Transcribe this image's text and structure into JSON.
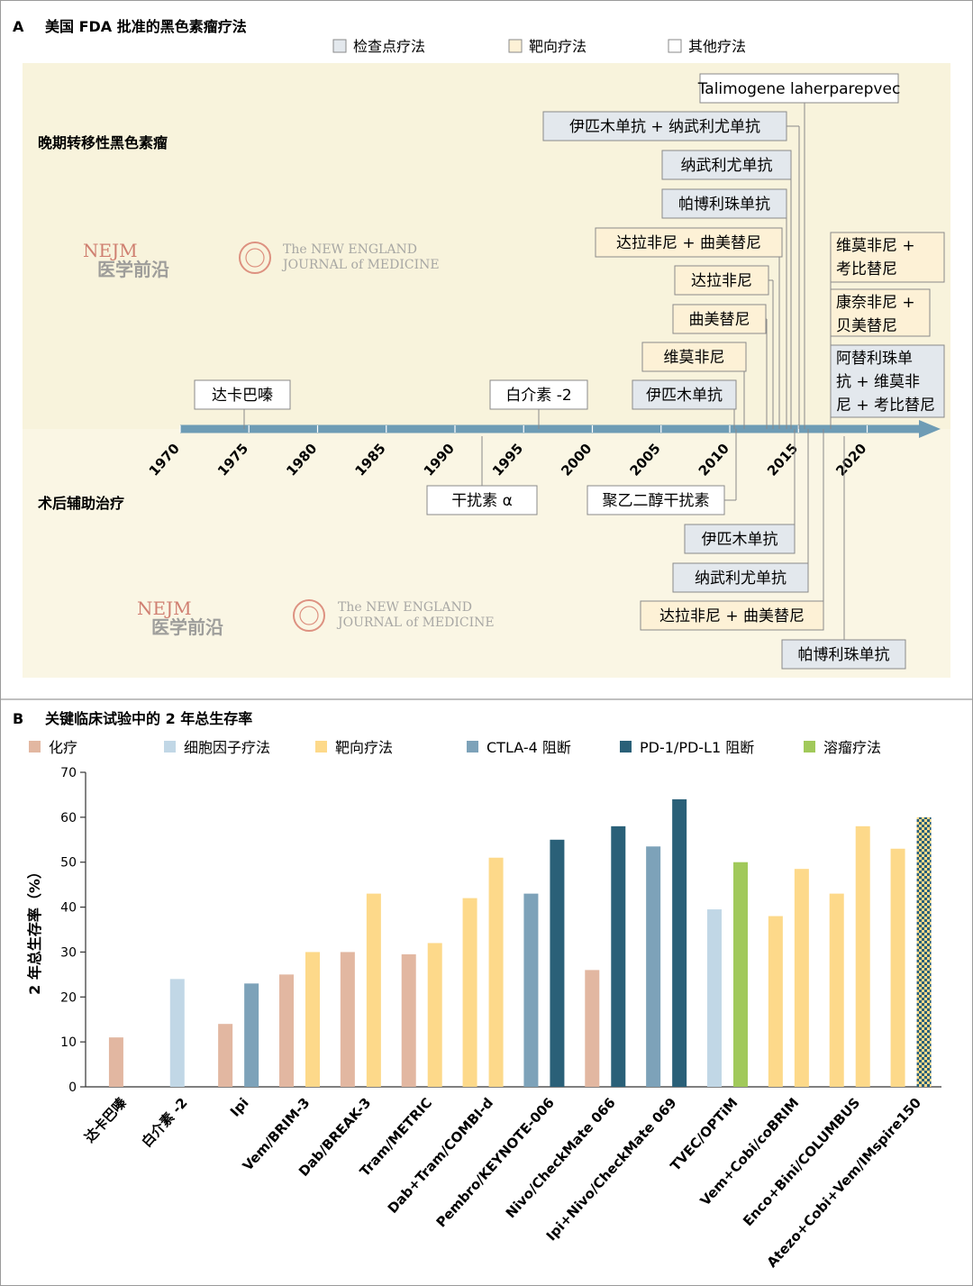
{
  "panel_a": {
    "letter": "A",
    "title": "美国 FDA 批准的黑色素瘤疗法",
    "legend": [
      {
        "label": "检查点疗法",
        "color": "#e3e8ed"
      },
      {
        "label": "靶向疗法",
        "color": "#fdf1d6"
      },
      {
        "label": "其他疗法",
        "color": "#ffffff"
      }
    ],
    "section_top": "晚期转移性黑色素瘤",
    "section_bottom": "术后辅助治疗",
    "watermark": {
      "nejm": "NEJM",
      "cn": "医学前沿",
      "line1": "The NEW ENGLAND",
      "line2": "JOURNAL of MEDICINE"
    },
    "year_ticks": [
      "1970",
      "1975",
      "1980",
      "1985",
      "1990",
      "1995",
      "2000",
      "2005",
      "2010",
      "2015",
      "2020"
    ],
    "approvals_top": [
      {
        "label": "Talimogene laherparepvec",
        "type": "other",
        "year": 2015.8
      },
      {
        "label": "伊匹木单抗 + 纳武利尤单抗",
        "type": "checkpoint",
        "year": 2015.7
      },
      {
        "label": "纳武利尤单抗",
        "type": "checkpoint",
        "year": 2014.9
      },
      {
        "label": "帕博利珠单抗",
        "type": "checkpoint",
        "year": 2014.7
      },
      {
        "label": "达拉非尼 + 曲美替尼",
        "type": "targeted",
        "year": 2014.0
      },
      {
        "label": "达拉非尼",
        "type": "targeted",
        "year": 2013.4
      },
      {
        "label": "曲美替尼",
        "type": "targeted",
        "year": 2013.4
      },
      {
        "label": "维莫非尼",
        "type": "targeted",
        "year": 2011.6
      },
      {
        "label": "伊匹木单抗",
        "type": "checkpoint",
        "year": 2011.2
      },
      {
        "label": "达卡巴嗪",
        "type": "other",
        "year": 1975.0
      },
      {
        "label": "白介素 -2",
        "type": "other",
        "year": 1998.0
      },
      {
        "label": "维莫非尼 +\n考比替尼",
        "type": "targeted",
        "year": 2015.9
      },
      {
        "label": "康奈非尼 +\n贝美替尼",
        "type": "targeted",
        "year": 2018.5
      },
      {
        "label": "阿替利珠单\n抗 + 维莫非\n尼 + 考比替尼",
        "type": "checkpoint",
        "year": 2020.5
      }
    ],
    "approvals_bottom": [
      {
        "label": "干扰素 α",
        "type": "other",
        "year": 1995.8
      },
      {
        "label": "聚乙二醇干扰素",
        "type": "other",
        "year": 2011.0
      },
      {
        "label": "伊匹木单抗",
        "type": "checkpoint",
        "year": 2015.3
      },
      {
        "label": "纳武利尤单抗",
        "type": "checkpoint",
        "year": 2017.6
      },
      {
        "label": "达拉非尼 + 曲美替尼",
        "type": "targeted",
        "year": 2018.3
      },
      {
        "label": "帕博利珠单抗",
        "type": "checkpoint",
        "year": 2019.0
      }
    ]
  },
  "panel_b": {
    "letter": "B",
    "title": "关键临床试验中的 2 年总生存率",
    "colors": {
      "chemo": "#e2b7a1",
      "cytokine": "#c1d7e6",
      "targeted": "#fdd98a",
      "ctla4": "#7da2b9",
      "pd1": "#2a6078",
      "oncolytic": "#a1c95a"
    }
  },
  "chart_data": {
    "type": "bar",
    "ylabel": "2 年总生存率（%）",
    "ylim": [
      0,
      70
    ],
    "yticks": [
      0,
      10,
      20,
      30,
      40,
      50,
      60,
      70
    ],
    "legend": [
      {
        "key": "chemo",
        "label": "化疗"
      },
      {
        "key": "cytokine",
        "label": "细胞因子疗法"
      },
      {
        "key": "targeted",
        "label": "靶向疗法"
      },
      {
        "key": "ctla4",
        "label": "CTLA-4 阻断"
      },
      {
        "key": "pd1",
        "label": "PD-1/PD-L1 阻断"
      },
      {
        "key": "oncolytic",
        "label": "溶瘤疗法"
      }
    ],
    "groups": [
      {
        "category": "达卡巴嗪",
        "bars": [
          {
            "series": "chemo",
            "value": 11
          }
        ]
      },
      {
        "category": "白介素 -2",
        "bars": [
          {
            "series": "cytokine",
            "value": 24
          }
        ]
      },
      {
        "category": "Ipi",
        "bars": [
          {
            "series": "chemo",
            "value": 14
          },
          {
            "series": "ctla4",
            "value": 23
          }
        ]
      },
      {
        "category": "Vem/BRIM-3",
        "bars": [
          {
            "series": "chemo",
            "value": 25
          },
          {
            "series": "targeted",
            "value": 30
          }
        ]
      },
      {
        "category": "Dab/BREAK-3",
        "bars": [
          {
            "series": "chemo",
            "value": 30
          },
          {
            "series": "targeted",
            "value": 43
          }
        ]
      },
      {
        "category": "Tram/METRIC",
        "bars": [
          {
            "series": "chemo",
            "value": 29.5
          },
          {
            "series": "targeted",
            "value": 32
          }
        ]
      },
      {
        "category": "Dab+Tram/COMBI-d",
        "bars": [
          {
            "series": "targeted",
            "value": 42
          },
          {
            "series": "targeted",
            "value": 51
          }
        ]
      },
      {
        "category": "Pembro/KEYNOTE-006",
        "bars": [
          {
            "series": "ctla4",
            "value": 43
          },
          {
            "series": "pd1",
            "value": 55
          }
        ]
      },
      {
        "category": "Nivo/CheckMate 066",
        "bars": [
          {
            "series": "chemo",
            "value": 26
          },
          {
            "series": "pd1",
            "value": 58
          }
        ]
      },
      {
        "category": "Ipi+Nivo/CheckMate 069",
        "bars": [
          {
            "series": "ctla4",
            "value": 53.5
          },
          {
            "series": "pd1",
            "value": 64
          }
        ]
      },
      {
        "category": "TVEC/OPTiM",
        "bars": [
          {
            "series": "cytokine",
            "value": 39.5
          },
          {
            "series": "oncolytic",
            "value": 50
          }
        ]
      },
      {
        "category": "Vem+Cobi/coBRIM",
        "bars": [
          {
            "series": "targeted",
            "value": 38
          },
          {
            "series": "targeted",
            "value": 48.5
          }
        ]
      },
      {
        "category": "Enco+Bini/COLUMBUS",
        "bars": [
          {
            "series": "targeted",
            "value": 43
          },
          {
            "series": "targeted",
            "value": 58
          }
        ]
      },
      {
        "category": "Atezo+Cobi+Vem/IMspire150",
        "bars": [
          {
            "series": "targeted",
            "value": 53
          },
          {
            "series": "targeted+pd1",
            "value": 60
          }
        ]
      }
    ]
  }
}
